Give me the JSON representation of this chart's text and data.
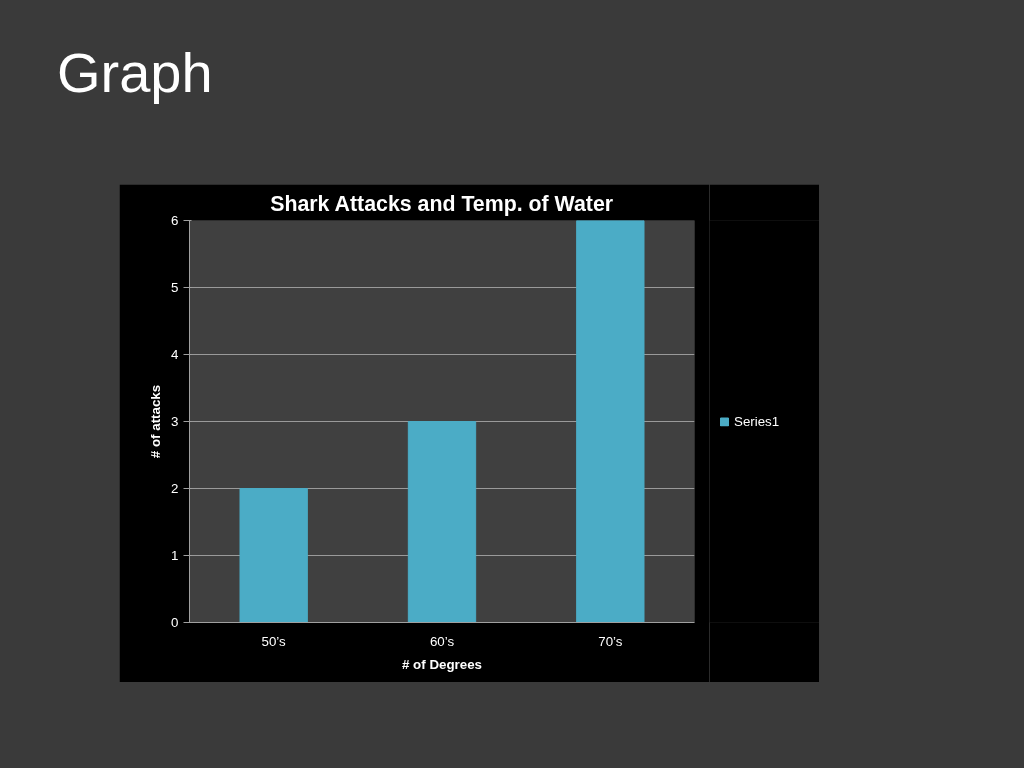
{
  "chart_data": {
    "type": "bar",
    "title": "Shark Attacks and Temp. of Water",
    "xlabel": "# of Degrees",
    "ylabel": "# of attacks",
    "annotations": [
      "Graph"
    ],
    "categories": [
      "50’s",
      "60’s",
      "70’s"
    ],
    "series": [
      {
        "name": "Series1",
        "color": "#4bacc6",
        "values": [
          2,
          3,
          6
        ]
      }
    ],
    "ylim": [
      0,
      6
    ],
    "yticks": [
      0,
      1,
      2,
      3,
      4,
      5,
      6
    ],
    "grid": "y",
    "legend": "right"
  }
}
